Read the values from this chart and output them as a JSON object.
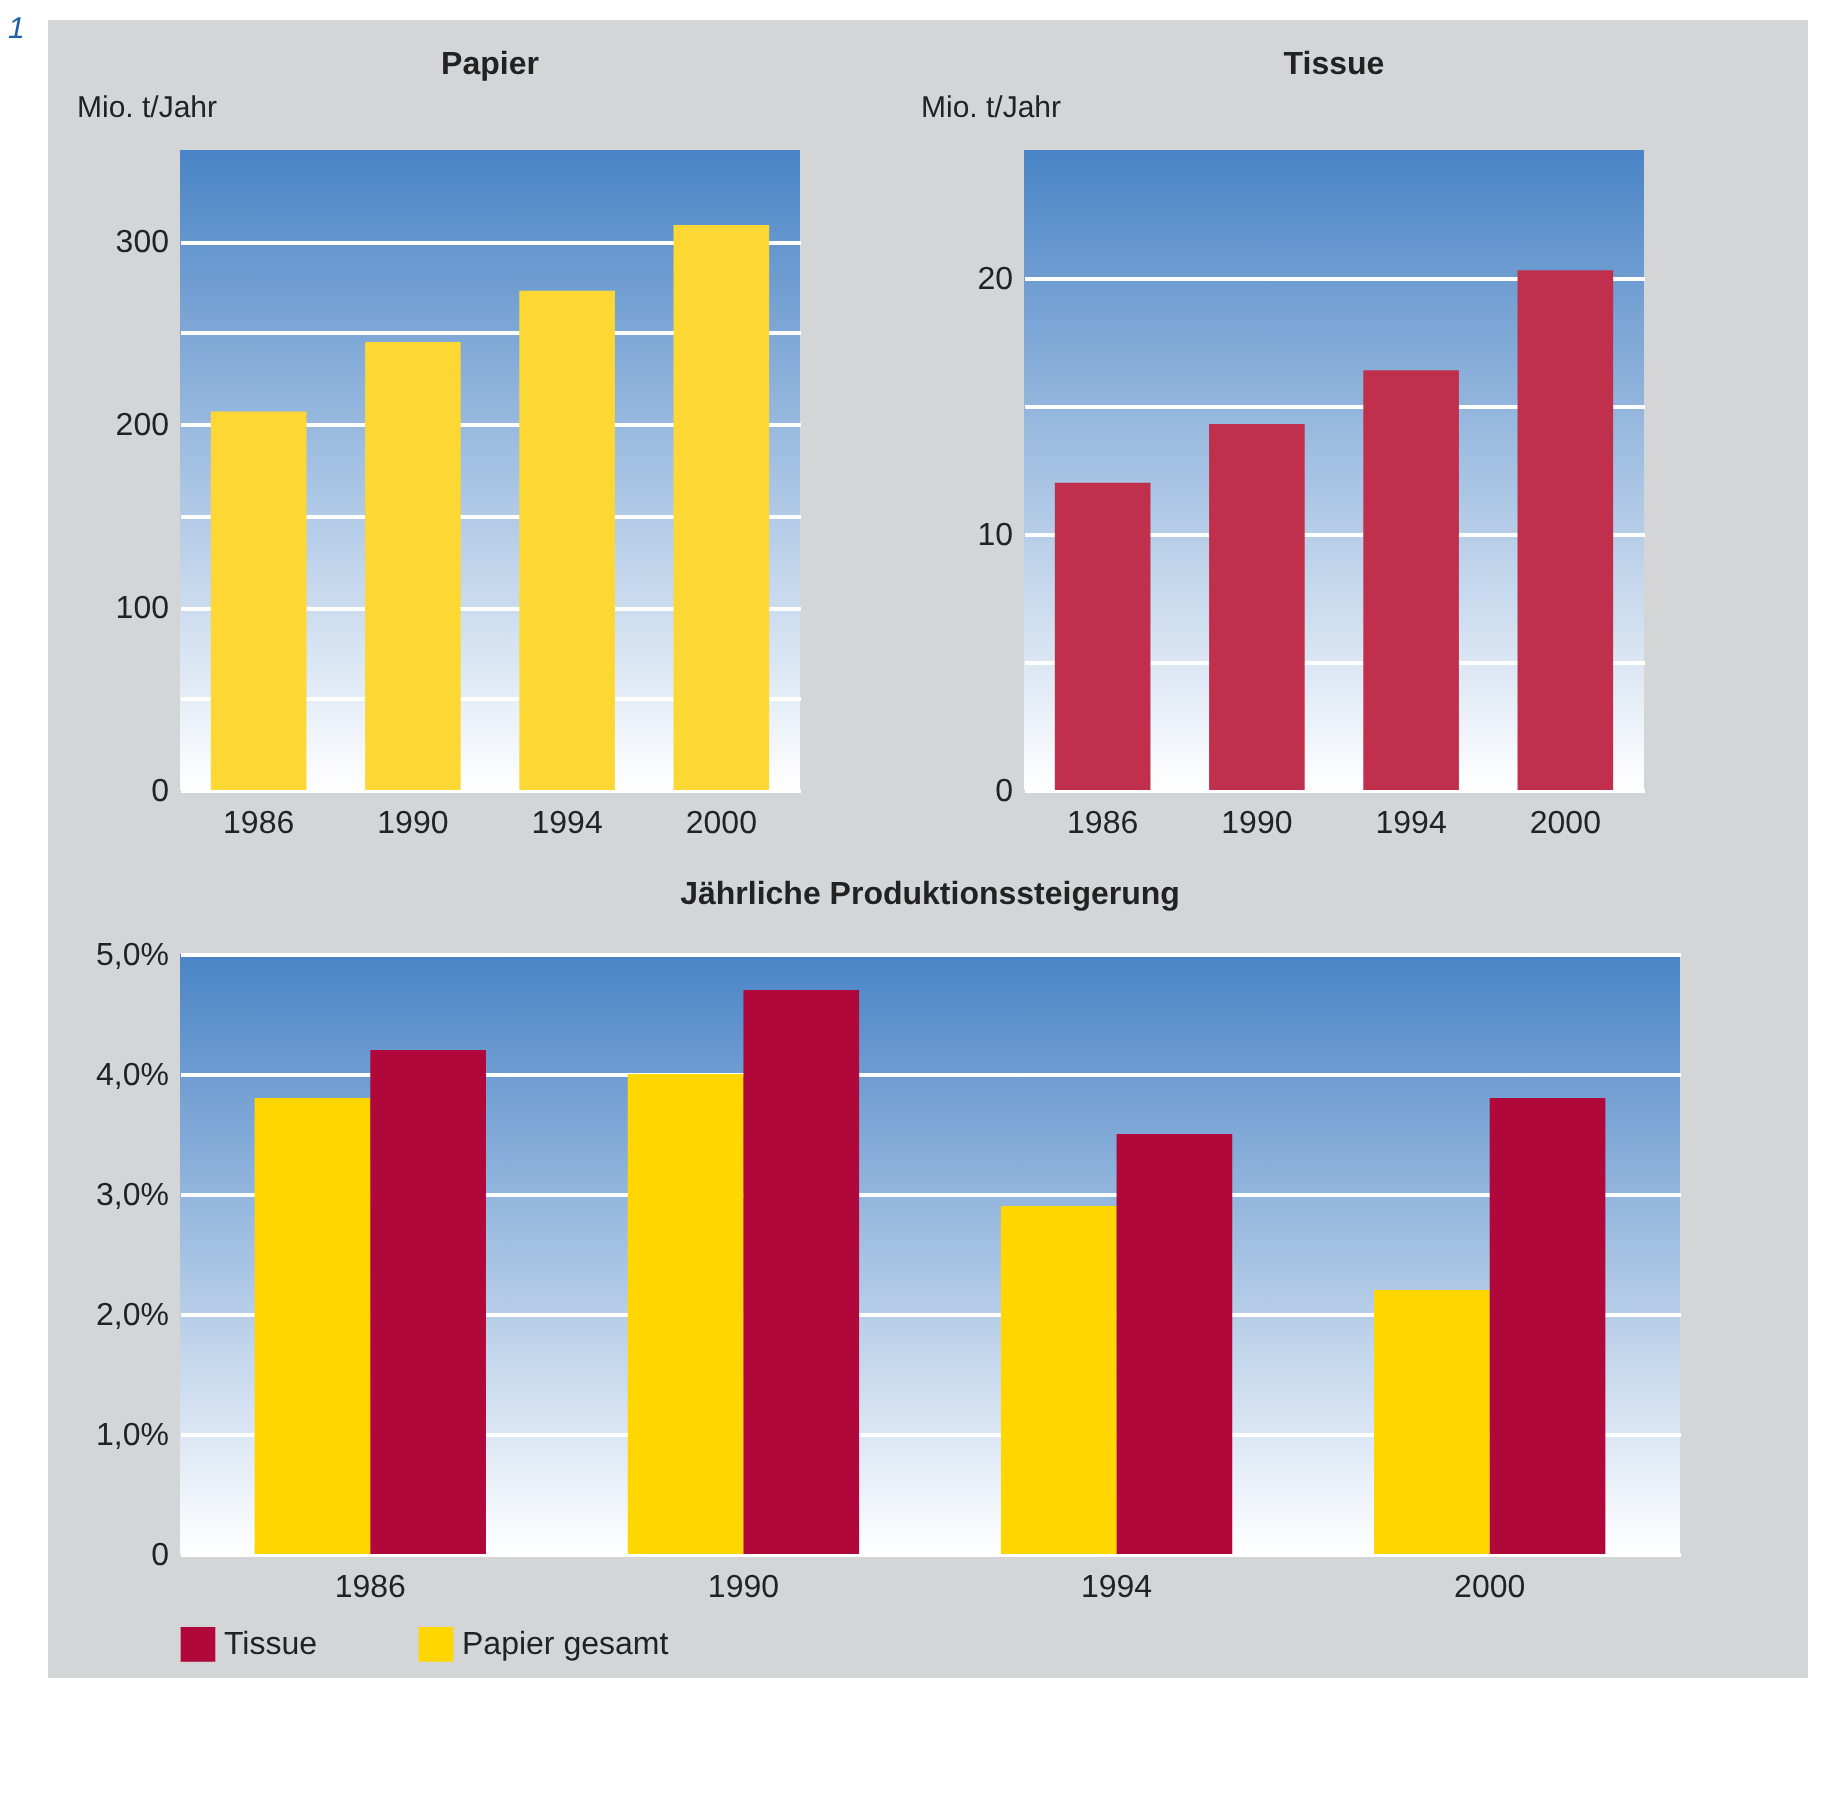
{
  "chart_data": [
    {
      "type": "bar",
      "title": "Papier",
      "ylabel": "Mio. t/Jahr",
      "annotations": [
        "1"
      ],
      "categories": [
        "1986",
        "1990",
        "1994",
        "2000"
      ],
      "values": [
        207,
        245,
        273,
        309
      ],
      "color": "#fdd835",
      "ylim": [
        0,
        350
      ],
      "yticks": [
        0,
        {
          "value": 50,
          "label": null
        },
        100,
        {
          "value": 150,
          "label": null
        },
        200,
        {
          "value": 250,
          "label": null
        },
        300
      ],
      "grid": true
    },
    {
      "type": "bar",
      "title": "Tissue",
      "ylabel": "Mio. t/Jahr",
      "categories": [
        "1986",
        "1990",
        "1994",
        "2000"
      ],
      "values": [
        12,
        14.3,
        16.4,
        20.3
      ],
      "color": "#c0304c",
      "ylim": [
        0,
        25
      ],
      "yticks": [
        0,
        {
          "value": 5,
          "label": null
        },
        10,
        {
          "value": 15,
          "label": null
        },
        20
      ],
      "grid": true
    },
    {
      "type": "bar",
      "title": "Jährliche Produktionssteigerung",
      "categories": [
        "1986",
        "1990",
        "1994",
        "2000"
      ],
      "series": [
        {
          "name": "Papier gesamt",
          "color": "#ffd600",
          "values": [
            3.8,
            4.0,
            2.9,
            2.2
          ]
        },
        {
          "name": "Tissue",
          "color": "#b0083a",
          "values": [
            4.2,
            4.7,
            3.5,
            3.8
          ]
        }
      ],
      "ylim": [
        0,
        5
      ],
      "yticks": [
        0,
        {
          "value": 1,
          "label": "1,0%"
        },
        {
          "value": 2,
          "label": "2,0%"
        },
        {
          "value": 3,
          "label": "3,0%"
        },
        {
          "value": 4,
          "label": "4,0%"
        },
        {
          "value": 5,
          "label": "5,0%"
        }
      ],
      "grid": true,
      "legend": "bottom left"
    }
  ]
}
